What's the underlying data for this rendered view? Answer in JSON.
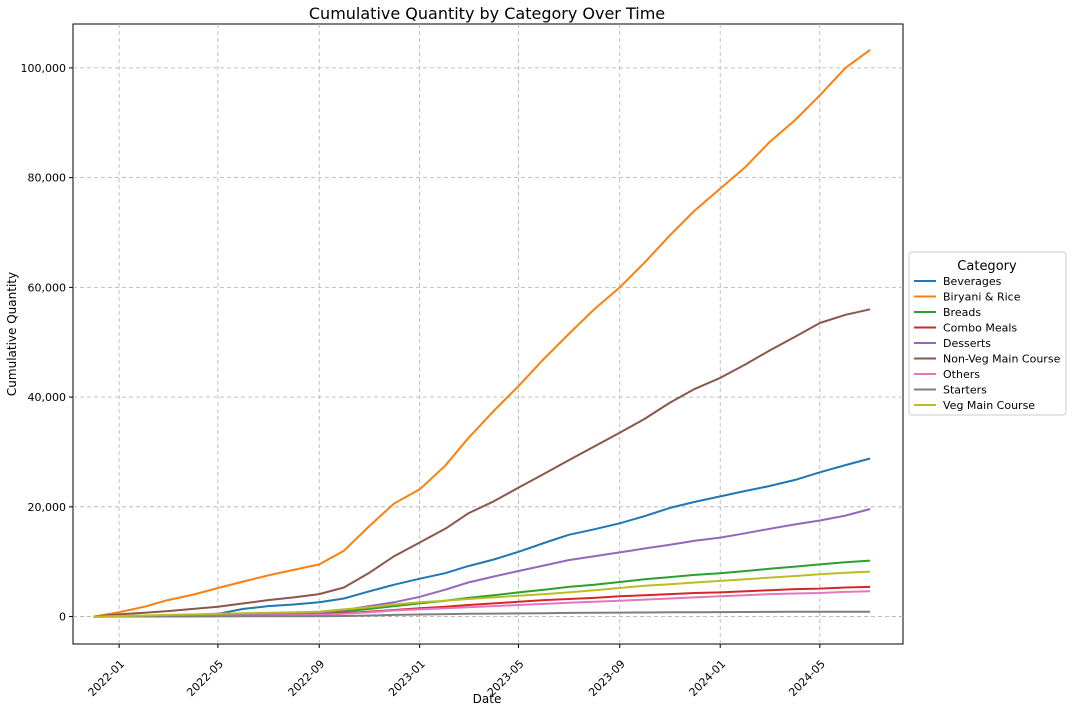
{
  "chart_data": {
    "type": "line",
    "title": "Cumulative Quantity by Category Over Time",
    "xlabel": "Date",
    "ylabel": "Cumulative Quantity",
    "x_ticks": [
      "2022-01",
      "2022-05",
      "2022-09",
      "2023-01",
      "2023-05",
      "2023-09",
      "2024-01",
      "2024-05"
    ],
    "y_ticks": [
      0,
      20000,
      40000,
      60000,
      80000,
      100000
    ],
    "y_tick_labels": [
      "0",
      "20,000",
      "40,000",
      "60,000",
      "80,000",
      "100,000"
    ],
    "xlim": [
      "2021-11-06",
      "2024-08-10"
    ],
    "ylim": [
      -5000,
      108000
    ],
    "grid": true,
    "legend": {
      "title": "Category",
      "placement": "center-right outside"
    },
    "x": [
      "2021-12-01",
      "2022-01-01",
      "2022-02-01",
      "2022-03-01",
      "2022-04-01",
      "2022-05-01",
      "2022-06-01",
      "2022-07-01",
      "2022-08-01",
      "2022-09-01",
      "2022-10-01",
      "2022-11-01",
      "2022-12-01",
      "2023-01-01",
      "2023-02-01",
      "2023-03-01",
      "2023-04-01",
      "2023-05-01",
      "2023-06-01",
      "2023-07-01",
      "2023-08-01",
      "2023-09-01",
      "2023-10-01",
      "2023-11-01",
      "2023-12-01",
      "2024-01-01",
      "2024-02-01",
      "2024-03-01",
      "2024-04-01",
      "2024-05-01",
      "2024-06-01",
      "2024-07-01"
    ],
    "series": [
      {
        "name": "Beverages",
        "color": "#1f77b4",
        "values": [
          0,
          50,
          100,
          150,
          300,
          500,
          1400,
          1900,
          2200,
          2600,
          3300,
          4600,
          5800,
          6900,
          7900,
          9200,
          10400,
          11800,
          13400,
          14900,
          15900,
          17000,
          18300,
          19800,
          20900,
          21900,
          22900,
          23800,
          24900,
          26300,
          27600,
          28800
        ]
      },
      {
        "name": "Biryani & Rice",
        "color": "#ff7f0e",
        "values": [
          0,
          800,
          1800,
          3000,
          4000,
          5200,
          6400,
          7500,
          8500,
          9500,
          12000,
          16500,
          20600,
          23200,
          27500,
          32500,
          37500,
          42000,
          47000,
          51500,
          56000,
          60000,
          64500,
          69500,
          74000,
          78000,
          82000,
          86500,
          90500,
          95000,
          100000,
          103300
        ]
      },
      {
        "name": "Breads",
        "color": "#2ca02c",
        "values": [
          0,
          30,
          60,
          100,
          150,
          200,
          300,
          400,
          500,
          600,
          900,
          1400,
          1900,
          2400,
          2900,
          3400,
          3900,
          4400,
          4900,
          5400,
          5800,
          6300,
          6800,
          7200,
          7600,
          7900,
          8300,
          8700,
          9100,
          9500,
          9900,
          10200
        ]
      },
      {
        "name": "Combo Meals",
        "color": "#d62728",
        "values": [
          0,
          20,
          40,
          60,
          90,
          120,
          180,
          240,
          320,
          400,
          600,
          900,
          1200,
          1500,
          1800,
          2100,
          2400,
          2700,
          3000,
          3200,
          3400,
          3700,
          3900,
          4100,
          4300,
          4400,
          4600,
          4800,
          5000,
          5100,
          5300,
          5400
        ]
      },
      {
        "name": "Desserts",
        "color": "#9467bd",
        "values": [
          0,
          40,
          80,
          120,
          180,
          250,
          350,
          450,
          550,
          650,
          1200,
          1900,
          2600,
          3600,
          4900,
          6200,
          7300,
          8300,
          9300,
          10300,
          11000,
          11700,
          12400,
          13100,
          13800,
          14400,
          15200,
          16000,
          16800,
          17500,
          18400,
          19600
        ]
      },
      {
        "name": "Non-Veg Main Course",
        "color": "#8c564b",
        "values": [
          0,
          400,
          700,
          1000,
          1400,
          1800,
          2400,
          3000,
          3500,
          4100,
          5300,
          8000,
          11000,
          13500,
          16000,
          18800,
          21000,
          23500,
          26000,
          28500,
          31000,
          33500,
          36000,
          39000,
          41500,
          43500,
          46000,
          48500,
          51000,
          53500,
          55000,
          56000
        ]
      },
      {
        "name": "Others",
        "color": "#e377c2",
        "values": [
          0,
          20,
          40,
          60,
          80,
          110,
          150,
          200,
          250,
          300,
          500,
          800,
          1100,
          1300,
          1500,
          1700,
          1900,
          2100,
          2300,
          2500,
          2700,
          2900,
          3100,
          3300,
          3500,
          3700,
          3900,
          4100,
          4200,
          4300,
          4500,
          4600
        ]
      },
      {
        "name": "Starters",
        "color": "#7f7f7f",
        "values": [
          0,
          5,
          10,
          15,
          20,
          30,
          40,
          50,
          60,
          70,
          100,
          200,
          300,
          380,
          450,
          500,
          540,
          580,
          620,
          660,
          690,
          720,
          740,
          770,
          790,
          810,
          830,
          850,
          860,
          870,
          880,
          890
        ]
      },
      {
        "name": "Veg Main Course",
        "color": "#bcbd22",
        "values": [
          0,
          100,
          200,
          300,
          400,
          500,
          600,
          700,
          800,
          900,
          1300,
          1700,
          2200,
          2600,
          2900,
          3200,
          3500,
          3800,
          4100,
          4400,
          4800,
          5200,
          5600,
          5900,
          6200,
          6500,
          6800,
          7100,
          7400,
          7700,
          8000,
          8200
        ]
      }
    ]
  }
}
